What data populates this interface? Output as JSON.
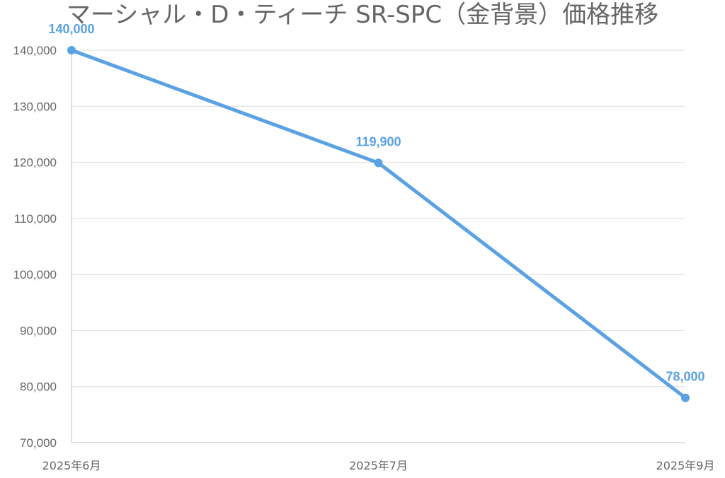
{
  "chart_data": {
    "type": "line",
    "title": "マーシャル・D・ティーチ SR-SPC（金背景）価格推移",
    "categories": [
      "2025年6月",
      "2025年7月",
      "2025年9月"
    ],
    "series": [
      {
        "values": [
          140000,
          119900,
          78000
        ],
        "color": "#5aa2e3"
      }
    ],
    "data_labels": [
      "140,000",
      "119,900",
      "78,000"
    ],
    "y_ticks": [
      "140,000",
      "130,000",
      "120,000",
      "110,000",
      "100,000",
      "90,000",
      "80,000",
      "70,000"
    ],
    "ylim": [
      70000,
      140000
    ],
    "xlabel": "",
    "ylabel": "",
    "grid": true,
    "legend": "none"
  }
}
